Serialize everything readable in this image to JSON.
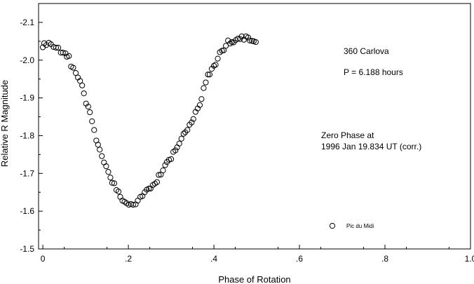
{
  "chart_data": {
    "type": "scatter",
    "xlabel": "Phase of Rotation",
    "ylabel": "Relative R Magnitude",
    "xlim": [
      -0.01,
      1.0
    ],
    "ylim": [
      -1.5,
      -2.15
    ],
    "y_axis_inverted": true,
    "grid": false,
    "x_ticks": [
      {
        "value": 0,
        "label": "0"
      },
      {
        "value": 0.2,
        "label": ".2"
      },
      {
        "value": 0.4,
        "label": ".4"
      },
      {
        "value": 0.6,
        "label": ".6"
      },
      {
        "value": 0.8,
        "label": ".8"
      },
      {
        "value": 1.0,
        "label": "1.0"
      }
    ],
    "y_ticks": [
      {
        "value": -2.1,
        "label": "-2.1"
      },
      {
        "value": -2.0,
        "label": "-2.0"
      },
      {
        "value": -1.9,
        "label": "-1.9"
      },
      {
        "value": -1.8,
        "label": "-1.8"
      },
      {
        "value": -1.7,
        "label": "-1.7"
      },
      {
        "value": -1.6,
        "label": "-1.6"
      },
      {
        "value": -1.5,
        "label": "-1.5"
      }
    ],
    "annotations": {
      "object": "360 Carlova",
      "period": "P = 6.188 hours",
      "zero_phase_line1": "Zero Phase at",
      "zero_phase_line2": "1996 Jan 19.834 UT (corr.)"
    },
    "legend": {
      "placement": "bottom-right",
      "label": "Pic du Midi"
    },
    "series": [
      {
        "name": "Pic du Midi",
        "marker": "open-circle",
        "points": [
          [
            0.0,
            -2.034
          ],
          [
            0.003,
            -2.045
          ],
          [
            0.008,
            -2.04
          ],
          [
            0.014,
            -2.046
          ],
          [
            0.019,
            -2.042
          ],
          [
            0.025,
            -2.035
          ],
          [
            0.031,
            -2.033
          ],
          [
            0.036,
            -2.033
          ],
          [
            0.042,
            -2.02
          ],
          [
            0.047,
            -2.02
          ],
          [
            0.053,
            -2.018
          ],
          [
            0.056,
            -2.009
          ],
          [
            0.061,
            -2.011
          ],
          [
            0.066,
            -1.983
          ],
          [
            0.071,
            -1.98
          ],
          [
            0.077,
            -1.966
          ],
          [
            0.082,
            -1.954
          ],
          [
            0.087,
            -1.945
          ],
          [
            0.092,
            -1.933
          ],
          [
            0.096,
            -1.912
          ],
          [
            0.101,
            -1.885
          ],
          [
            0.106,
            -1.877
          ],
          [
            0.11,
            -1.862
          ],
          [
            0.115,
            -1.838
          ],
          [
            0.12,
            -1.815
          ],
          [
            0.125,
            -1.787
          ],
          [
            0.129,
            -1.776
          ],
          [
            0.133,
            -1.763
          ],
          [
            0.138,
            -1.746
          ],
          [
            0.143,
            -1.729
          ],
          [
            0.148,
            -1.719
          ],
          [
            0.153,
            -1.704
          ],
          [
            0.158,
            -1.689
          ],
          [
            0.162,
            -1.675
          ],
          [
            0.167,
            -1.674
          ],
          [
            0.172,
            -1.656
          ],
          [
            0.177,
            -1.652
          ],
          [
            0.181,
            -1.638
          ],
          [
            0.186,
            -1.628
          ],
          [
            0.191,
            -1.625
          ],
          [
            0.196,
            -1.621
          ],
          [
            0.201,
            -1.617
          ],
          [
            0.206,
            -1.619
          ],
          [
            0.211,
            -1.617
          ],
          [
            0.217,
            -1.618
          ],
          [
            0.222,
            -1.628
          ],
          [
            0.228,
            -1.638
          ],
          [
            0.233,
            -1.64
          ],
          [
            0.238,
            -1.65
          ],
          [
            0.243,
            -1.657
          ],
          [
            0.248,
            -1.66
          ],
          [
            0.252,
            -1.66
          ],
          [
            0.257,
            -1.669
          ],
          [
            0.262,
            -1.673
          ],
          [
            0.267,
            -1.677
          ],
          [
            0.271,
            -1.696
          ],
          [
            0.276,
            -1.697
          ],
          [
            0.281,
            -1.708
          ],
          [
            0.286,
            -1.722
          ],
          [
            0.29,
            -1.73
          ],
          [
            0.295,
            -1.736
          ],
          [
            0.3,
            -1.738
          ],
          [
            0.305,
            -1.757
          ],
          [
            0.31,
            -1.761
          ],
          [
            0.314,
            -1.769
          ],
          [
            0.319,
            -1.779
          ],
          [
            0.324,
            -1.792
          ],
          [
            0.329,
            -1.805
          ],
          [
            0.333,
            -1.809
          ],
          [
            0.338,
            -1.815
          ],
          [
            0.343,
            -1.829
          ],
          [
            0.348,
            -1.835
          ],
          [
            0.352,
            -1.844
          ],
          [
            0.357,
            -1.863
          ],
          [
            0.362,
            -1.872
          ],
          [
            0.367,
            -1.881
          ],
          [
            0.371,
            -1.897
          ],
          [
            0.376,
            -1.926
          ],
          [
            0.381,
            -1.941
          ],
          [
            0.386,
            -1.962
          ],
          [
            0.39,
            -1.962
          ],
          [
            0.395,
            -1.977
          ],
          [
            0.4,
            -1.985
          ],
          [
            0.404,
            -1.988
          ],
          [
            0.409,
            -2.004
          ],
          [
            0.414,
            -2.021
          ],
          [
            0.419,
            -2.025
          ],
          [
            0.423,
            -2.026
          ],
          [
            0.428,
            -2.038
          ],
          [
            0.433,
            -2.052
          ],
          [
            0.438,
            -2.044
          ],
          [
            0.442,
            -2.048
          ],
          [
            0.446,
            -2.047
          ],
          [
            0.451,
            -2.053
          ],
          [
            0.456,
            -2.057
          ],
          [
            0.461,
            -2.056
          ],
          [
            0.465,
            -2.063
          ],
          [
            0.47,
            -2.054
          ],
          [
            0.475,
            -2.063
          ],
          [
            0.48,
            -2.06
          ],
          [
            0.484,
            -2.052
          ],
          [
            0.489,
            -2.051
          ],
          [
            0.493,
            -2.05
          ],
          [
            0.498,
            -2.048
          ]
        ]
      }
    ]
  }
}
